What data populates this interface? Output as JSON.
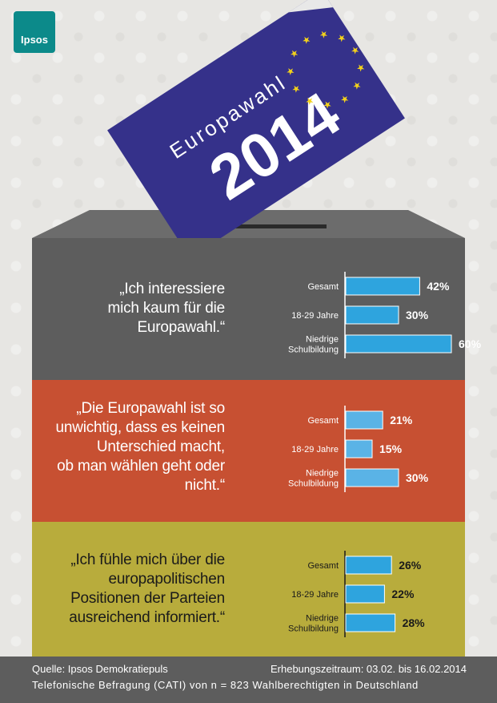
{
  "brand": {
    "logo_text": "Ipsos",
    "logo_color": "#0c8a8a"
  },
  "ballot": {
    "line1": "Europawahl",
    "line2": "2014",
    "color": "#35318a",
    "star_color": "#f3d21b"
  },
  "panels": [
    {
      "quote_lines": [
        "„Ich interessiere",
        "mich kaum für die",
        "Europawahl.“"
      ],
      "color": "#5d5d5d"
    },
    {
      "quote_lines": [
        "„Die Europawahl ist so",
        "unwichtig, dass es keinen",
        "Unterschied macht,",
        "ob man wählen geht oder",
        "nicht.“"
      ],
      "color": "#c75032"
    },
    {
      "quote_lines": [
        "„Ich fühle mich über die",
        "europapolitischen",
        "Positionen der Parteien",
        "ausreichend informiert.“"
      ],
      "color": "#b8ac3c"
    }
  ],
  "chart_data": [
    {
      "type": "bar",
      "orientation": "horizontal",
      "categories": [
        "Gesamt",
        "18-29 Jahre",
        "Niedrige Schulbildung"
      ],
      "values": [
        42,
        30,
        60
      ],
      "labels": [
        "42%",
        "30%",
        "60%"
      ],
      "xlim": [
        0,
        100
      ],
      "bar_color": "#2ea4de"
    },
    {
      "type": "bar",
      "orientation": "horizontal",
      "categories": [
        "Gesamt",
        "18-29 Jahre",
        "Niedrige Schulbildung"
      ],
      "values": [
        21,
        15,
        30
      ],
      "labels": [
        "21%",
        "15%",
        "30%"
      ],
      "xlim": [
        0,
        100
      ],
      "bar_color": "#5ab3e6"
    },
    {
      "type": "bar",
      "orientation": "horizontal",
      "categories": [
        "Gesamt",
        "18-29 Jahre",
        "Niedrige Schulbildung"
      ],
      "values": [
        26,
        22,
        28
      ],
      "labels": [
        "26%",
        "22%",
        "28%"
      ],
      "xlim": [
        0,
        100
      ],
      "bar_color": "#2ea4de"
    }
  ],
  "footer": {
    "source": "Quelle: Ipsos Demokratiepuls",
    "period": "Erhebungszeitraum: 03.02. bis 16.02.2014",
    "method": "Telefonische Befragung (CATI) von n = 823 Wahlberechtigten in Deutschland"
  }
}
